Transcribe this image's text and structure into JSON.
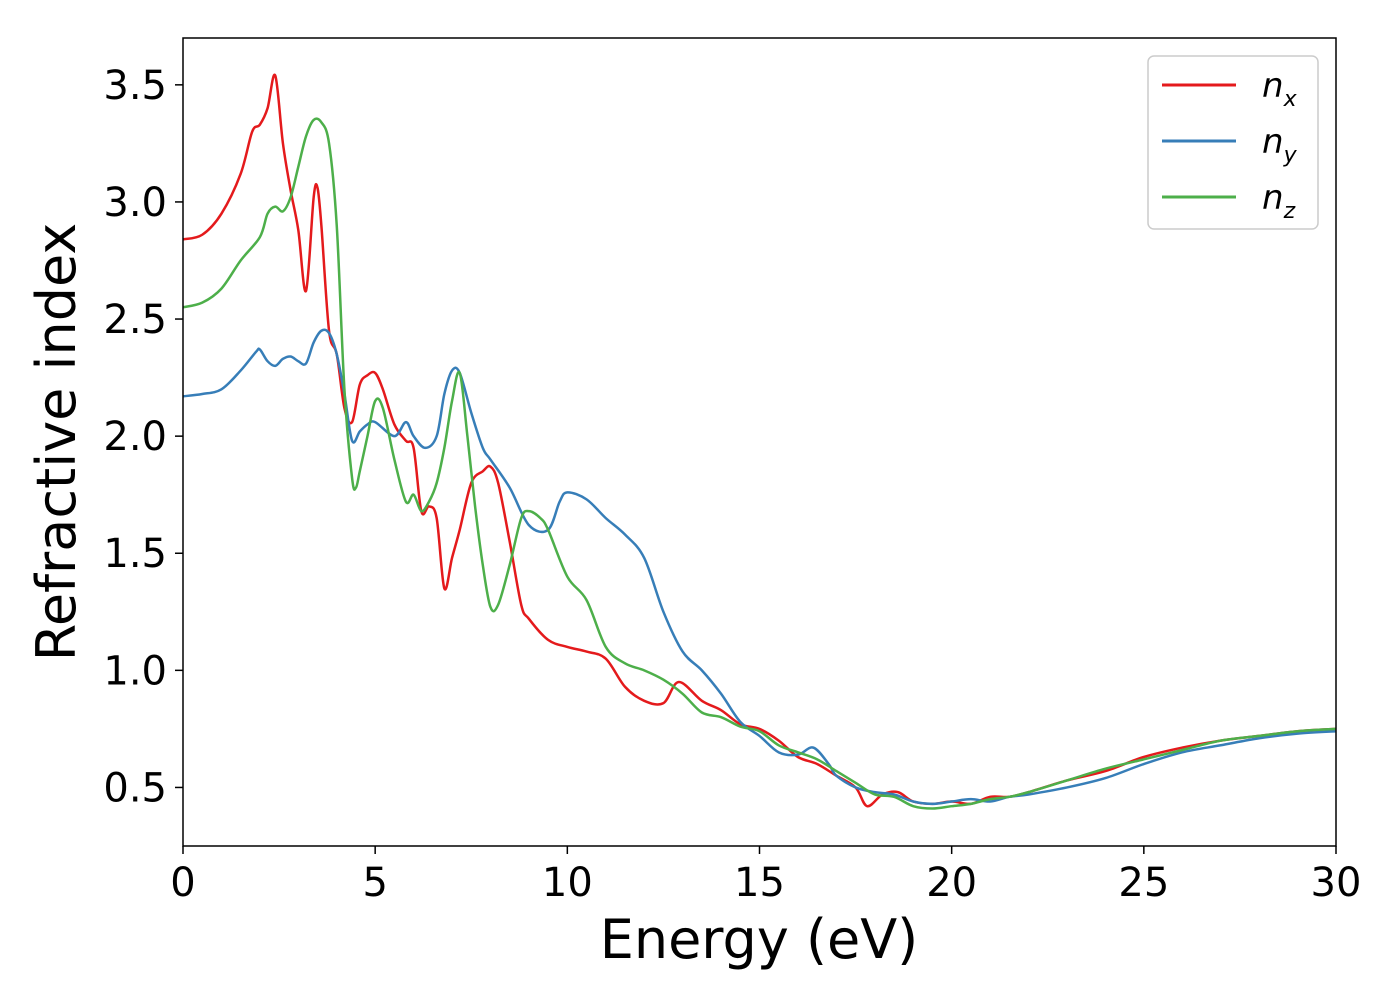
{
  "chart_data": {
    "type": "line",
    "title": "",
    "xlabel": "Energy (eV)",
    "ylabel": "Refractive index",
    "xlim": [
      0,
      30
    ],
    "ylim": [
      0.25,
      3.7
    ],
    "xticks": [
      0,
      5,
      10,
      15,
      20,
      25,
      30
    ],
    "yticks": [
      0.5,
      1.0,
      1.5,
      2.0,
      2.5,
      3.0,
      3.5
    ],
    "grid": false,
    "legend_position": "top-right",
    "series": [
      {
        "name": "n",
        "subscript": "x",
        "color": "#e41a1c",
        "x": [
          0,
          0.5,
          1.0,
          1.5,
          1.8,
          2.0,
          2.2,
          2.4,
          2.6,
          2.8,
          3.0,
          3.2,
          3.4,
          3.5,
          3.6,
          3.8,
          4.0,
          4.2,
          4.4,
          4.6,
          4.8,
          5.0,
          5.2,
          5.5,
          5.8,
          6.0,
          6.2,
          6.4,
          6.6,
          6.8,
          7.0,
          7.2,
          7.5,
          7.8,
          8.0,
          8.2,
          8.5,
          8.8,
          9.0,
          9.5,
          10.0,
          10.5,
          11.0,
          11.5,
          12.0,
          12.5,
          12.9,
          13.5,
          14.0,
          14.5,
          15.0,
          15.5,
          16.0,
          16.5,
          17.0,
          17.5,
          17.8,
          18.2,
          18.6,
          19.0,
          19.5,
          20.0,
          20.5,
          21.0,
          21.5,
          22.0,
          23.0,
          24.0,
          25.0,
          26.0,
          27.0,
          28.0,
          29.0,
          30.0
        ],
        "y": [
          2.84,
          2.86,
          2.95,
          3.12,
          3.3,
          3.33,
          3.4,
          3.54,
          3.25,
          3.05,
          2.88,
          2.62,
          3.02,
          3.06,
          2.9,
          2.45,
          2.35,
          2.12,
          2.06,
          2.22,
          2.26,
          2.27,
          2.2,
          2.05,
          1.98,
          1.95,
          1.68,
          1.7,
          1.65,
          1.35,
          1.48,
          1.6,
          1.8,
          1.85,
          1.87,
          1.8,
          1.55,
          1.28,
          1.22,
          1.13,
          1.1,
          1.08,
          1.05,
          0.93,
          0.87,
          0.86,
          0.95,
          0.87,
          0.83,
          0.77,
          0.75,
          0.7,
          0.63,
          0.6,
          0.55,
          0.5,
          0.42,
          0.47,
          0.48,
          0.44,
          0.43,
          0.44,
          0.43,
          0.46,
          0.46,
          0.48,
          0.53,
          0.57,
          0.63,
          0.67,
          0.7,
          0.72,
          0.74,
          0.75
        ]
      },
      {
        "name": "n",
        "subscript": "y",
        "color": "#377eb8",
        "x": [
          0,
          0.5,
          1.0,
          1.5,
          1.9,
          2.0,
          2.2,
          2.4,
          2.6,
          2.8,
          3.0,
          3.2,
          3.4,
          3.6,
          3.8,
          4.0,
          4.2,
          4.4,
          4.6,
          4.8,
          5.0,
          5.5,
          5.8,
          6.0,
          6.3,
          6.6,
          6.8,
          7.0,
          7.2,
          7.5,
          7.8,
          8.0,
          8.5,
          9.0,
          9.5,
          9.8,
          10.0,
          10.5,
          11.0,
          11.5,
          12.0,
          12.5,
          13.0,
          13.5,
          14.0,
          14.5,
          15.0,
          15.5,
          16.0,
          16.4,
          16.8,
          17.0,
          17.5,
          18.0,
          18.5,
          19.0,
          19.5,
          20.0,
          20.5,
          21.0,
          21.5,
          22.0,
          23.0,
          24.0,
          25.0,
          26.0,
          27.0,
          28.0,
          29.0,
          30.0
        ],
        "y": [
          2.17,
          2.18,
          2.2,
          2.28,
          2.36,
          2.37,
          2.32,
          2.3,
          2.33,
          2.34,
          2.32,
          2.31,
          2.4,
          2.45,
          2.44,
          2.35,
          2.18,
          1.98,
          2.02,
          2.05,
          2.06,
          2.0,
          2.06,
          2.0,
          1.95,
          2.0,
          2.18,
          2.28,
          2.27,
          2.1,
          1.95,
          1.9,
          1.78,
          1.62,
          1.6,
          1.72,
          1.76,
          1.73,
          1.65,
          1.58,
          1.48,
          1.25,
          1.08,
          1.0,
          0.9,
          0.78,
          0.72,
          0.65,
          0.64,
          0.67,
          0.6,
          0.55,
          0.5,
          0.48,
          0.47,
          0.44,
          0.43,
          0.44,
          0.45,
          0.44,
          0.46,
          0.47,
          0.5,
          0.54,
          0.6,
          0.65,
          0.68,
          0.71,
          0.73,
          0.74
        ]
      },
      {
        "name": "n",
        "subscript": "z",
        "color": "#4daf4a",
        "x": [
          0,
          0.5,
          1.0,
          1.5,
          2.0,
          2.2,
          2.4,
          2.6,
          2.8,
          3.0,
          3.2,
          3.4,
          3.6,
          3.8,
          4.0,
          4.2,
          4.4,
          4.5,
          4.6,
          4.8,
          5.0,
          5.2,
          5.5,
          5.8,
          6.0,
          6.2,
          6.4,
          6.6,
          6.8,
          7.0,
          7.2,
          7.4,
          7.6,
          7.8,
          8.0,
          8.2,
          8.5,
          8.8,
          9.0,
          9.3,
          9.5,
          10.0,
          10.5,
          11.0,
          11.5,
          12.0,
          12.5,
          13.0,
          13.5,
          14.0,
          14.5,
          15.0,
          15.5,
          16.0,
          16.5,
          17.0,
          17.5,
          18.0,
          18.5,
          19.0,
          19.5,
          20.0,
          20.5,
          21.0,
          21.5,
          22.0,
          23.0,
          24.0,
          25.0,
          26.0,
          27.0,
          28.0,
          29.0,
          30.0
        ],
        "y": [
          2.55,
          2.57,
          2.63,
          2.75,
          2.85,
          2.95,
          2.98,
          2.96,
          3.02,
          3.15,
          3.28,
          3.35,
          3.34,
          3.25,
          2.9,
          2.2,
          1.82,
          1.78,
          1.85,
          2.0,
          2.15,
          2.12,
          1.9,
          1.72,
          1.75,
          1.68,
          1.72,
          1.8,
          1.95,
          2.15,
          2.27,
          2.0,
          1.7,
          1.45,
          1.27,
          1.28,
          1.45,
          1.65,
          1.68,
          1.65,
          1.6,
          1.4,
          1.3,
          1.1,
          1.03,
          1.0,
          0.96,
          0.9,
          0.82,
          0.8,
          0.76,
          0.74,
          0.68,
          0.65,
          0.62,
          0.57,
          0.52,
          0.47,
          0.46,
          0.42,
          0.41,
          0.42,
          0.43,
          0.45,
          0.46,
          0.48,
          0.53,
          0.58,
          0.62,
          0.66,
          0.7,
          0.72,
          0.74,
          0.75
        ]
      }
    ]
  }
}
